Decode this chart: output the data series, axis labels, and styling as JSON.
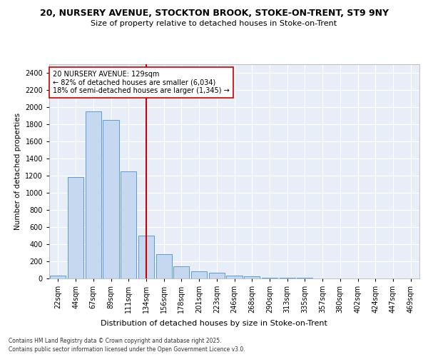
{
  "title1": "20, NURSERY AVENUE, STOCKTON BROOK, STOKE-ON-TRENT, ST9 9NY",
  "title2": "Size of property relative to detached houses in Stoke-on-Trent",
  "xlabel": "Distribution of detached houses by size in Stoke-on-Trent",
  "ylabel": "Number of detached properties",
  "categories": [
    "22sqm",
    "44sqm",
    "67sqm",
    "89sqm",
    "111sqm",
    "134sqm",
    "156sqm",
    "178sqm",
    "201sqm",
    "223sqm",
    "246sqm",
    "268sqm",
    "290sqm",
    "313sqm",
    "335sqm",
    "357sqm",
    "380sqm",
    "402sqm",
    "424sqm",
    "447sqm",
    "469sqm"
  ],
  "values": [
    30,
    1180,
    1950,
    1850,
    1250,
    500,
    280,
    140,
    80,
    70,
    30,
    25,
    5,
    10,
    5,
    2,
    2,
    2,
    2,
    2,
    2
  ],
  "bar_color": "#c5d8f0",
  "bar_edge_color": "#5b9bd5",
  "vline_color": "#cc0000",
  "annotation_text": "20 NURSERY AVENUE: 129sqm\n← 82% of detached houses are smaller (6,034)\n18% of semi-detached houses are larger (1,345) →",
  "annotation_box_color": "#ffffff",
  "annotation_box_edge": "#cc0000",
  "ylim": [
    0,
    2500
  ],
  "yticks": [
    0,
    200,
    400,
    600,
    800,
    1000,
    1200,
    1400,
    1600,
    1800,
    2000,
    2200,
    2400
  ],
  "bg_color": "#e8eef8",
  "footer1": "Contains HM Land Registry data © Crown copyright and database right 2025.",
  "footer2": "Contains public sector information licensed under the Open Government Licence v3.0.",
  "title_fontsize": 9,
  "subtitle_fontsize": 8,
  "axis_label_fontsize": 8,
  "tick_fontsize": 7,
  "annotation_fontsize": 7,
  "ylabel_fontsize": 7.5
}
